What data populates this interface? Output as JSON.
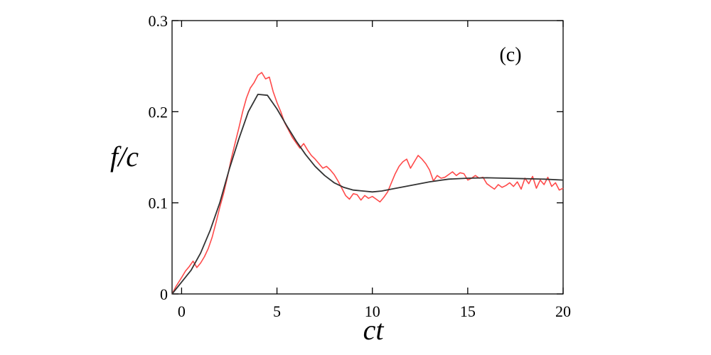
{
  "chart_data": {
    "type": "line",
    "panel_label": "(c)",
    "xlabel": "ct",
    "ylabel": "f/c",
    "xlim": [
      -0.5,
      20
    ],
    "ylim": [
      0,
      0.3
    ],
    "xticks": [
      0,
      5,
      10,
      15,
      20
    ],
    "xtick_labels": [
      "0",
      "5",
      "10",
      "15",
      "20"
    ],
    "yticks": [
      0,
      0.1,
      0.2,
      0.3
    ],
    "ytick_labels": [
      "0",
      "0.1",
      "0.2",
      "0.3"
    ],
    "grid": false,
    "colors": {
      "series_noisy": "#ff4a4a",
      "series_smooth": "#333333",
      "axes": "#000000"
    },
    "series": [
      {
        "x": [
          -0.5,
          -0.3,
          0.0,
          0.2,
          0.4,
          0.6,
          0.8,
          1.0,
          1.2,
          1.4,
          1.6,
          1.8,
          2.0,
          2.2,
          2.4,
          2.6,
          2.8,
          3.0,
          3.2,
          3.4,
          3.6,
          3.8,
          4.0,
          4.2,
          4.4,
          4.6,
          4.8,
          5.0,
          5.2,
          5.4,
          5.6,
          5.8,
          6.0,
          6.2,
          6.4,
          6.6,
          6.8,
          7.0,
          7.2,
          7.4,
          7.6,
          7.8,
          8.0,
          8.2,
          8.4,
          8.6,
          8.8,
          9.0,
          9.2,
          9.4,
          9.6,
          9.8,
          10.0,
          10.2,
          10.4,
          10.6,
          10.8,
          11.0,
          11.2,
          11.4,
          11.6,
          11.8,
          12.0,
          12.2,
          12.4,
          12.6,
          12.8,
          13.0,
          13.2,
          13.4,
          13.6,
          13.8,
          14.0,
          14.2,
          14.4,
          14.6,
          14.8,
          15.0,
          15.2,
          15.4,
          15.6,
          15.8,
          16.0,
          16.2,
          16.4,
          16.6,
          16.8,
          17.0,
          17.2,
          17.4,
          17.6,
          17.8,
          18.0,
          18.2,
          18.4,
          18.6,
          18.8,
          19.0,
          19.2,
          19.4,
          19.6,
          19.8,
          20.0
        ],
        "values": [
          0.0,
          0.008,
          0.018,
          0.025,
          0.03,
          0.036,
          0.029,
          0.034,
          0.041,
          0.05,
          0.062,
          0.078,
          0.095,
          0.11,
          0.128,
          0.148,
          0.165,
          0.182,
          0.2,
          0.215,
          0.226,
          0.232,
          0.24,
          0.243,
          0.236,
          0.238,
          0.222,
          0.21,
          0.2,
          0.188,
          0.18,
          0.172,
          0.166,
          0.16,
          0.165,
          0.158,
          0.152,
          0.148,
          0.143,
          0.138,
          0.14,
          0.136,
          0.131,
          0.124,
          0.116,
          0.108,
          0.104,
          0.11,
          0.109,
          0.103,
          0.108,
          0.105,
          0.107,
          0.104,
          0.101,
          0.106,
          0.112,
          0.122,
          0.132,
          0.14,
          0.145,
          0.148,
          0.138,
          0.145,
          0.152,
          0.148,
          0.143,
          0.136,
          0.124,
          0.13,
          0.127,
          0.128,
          0.131,
          0.134,
          0.13,
          0.133,
          0.132,
          0.125,
          0.127,
          0.13,
          0.127,
          0.128,
          0.121,
          0.118,
          0.115,
          0.12,
          0.117,
          0.119,
          0.122,
          0.118,
          0.123,
          0.115,
          0.127,
          0.121,
          0.129,
          0.116,
          0.125,
          0.12,
          0.128,
          0.118,
          0.122,
          0.114,
          0.116
        ]
      },
      {
        "x": [
          -0.5,
          0.0,
          0.5,
          1.0,
          1.5,
          2.0,
          2.5,
          3.0,
          3.5,
          4.0,
          4.5,
          5.0,
          5.5,
          6.0,
          6.5,
          7.0,
          7.5,
          8.0,
          8.5,
          9.0,
          9.5,
          10.0,
          10.5,
          11.0,
          12.0,
          13.0,
          14.0,
          15.0,
          16.0,
          17.0,
          18.0,
          19.0,
          20.0
        ],
        "values": [
          0.0,
          0.013,
          0.026,
          0.045,
          0.07,
          0.1,
          0.137,
          0.17,
          0.2,
          0.219,
          0.218,
          0.203,
          0.185,
          0.168,
          0.153,
          0.14,
          0.13,
          0.122,
          0.117,
          0.114,
          0.113,
          0.112,
          0.113,
          0.115,
          0.119,
          0.123,
          0.126,
          0.127,
          0.1275,
          0.127,
          0.1265,
          0.126,
          0.125
        ]
      }
    ]
  }
}
